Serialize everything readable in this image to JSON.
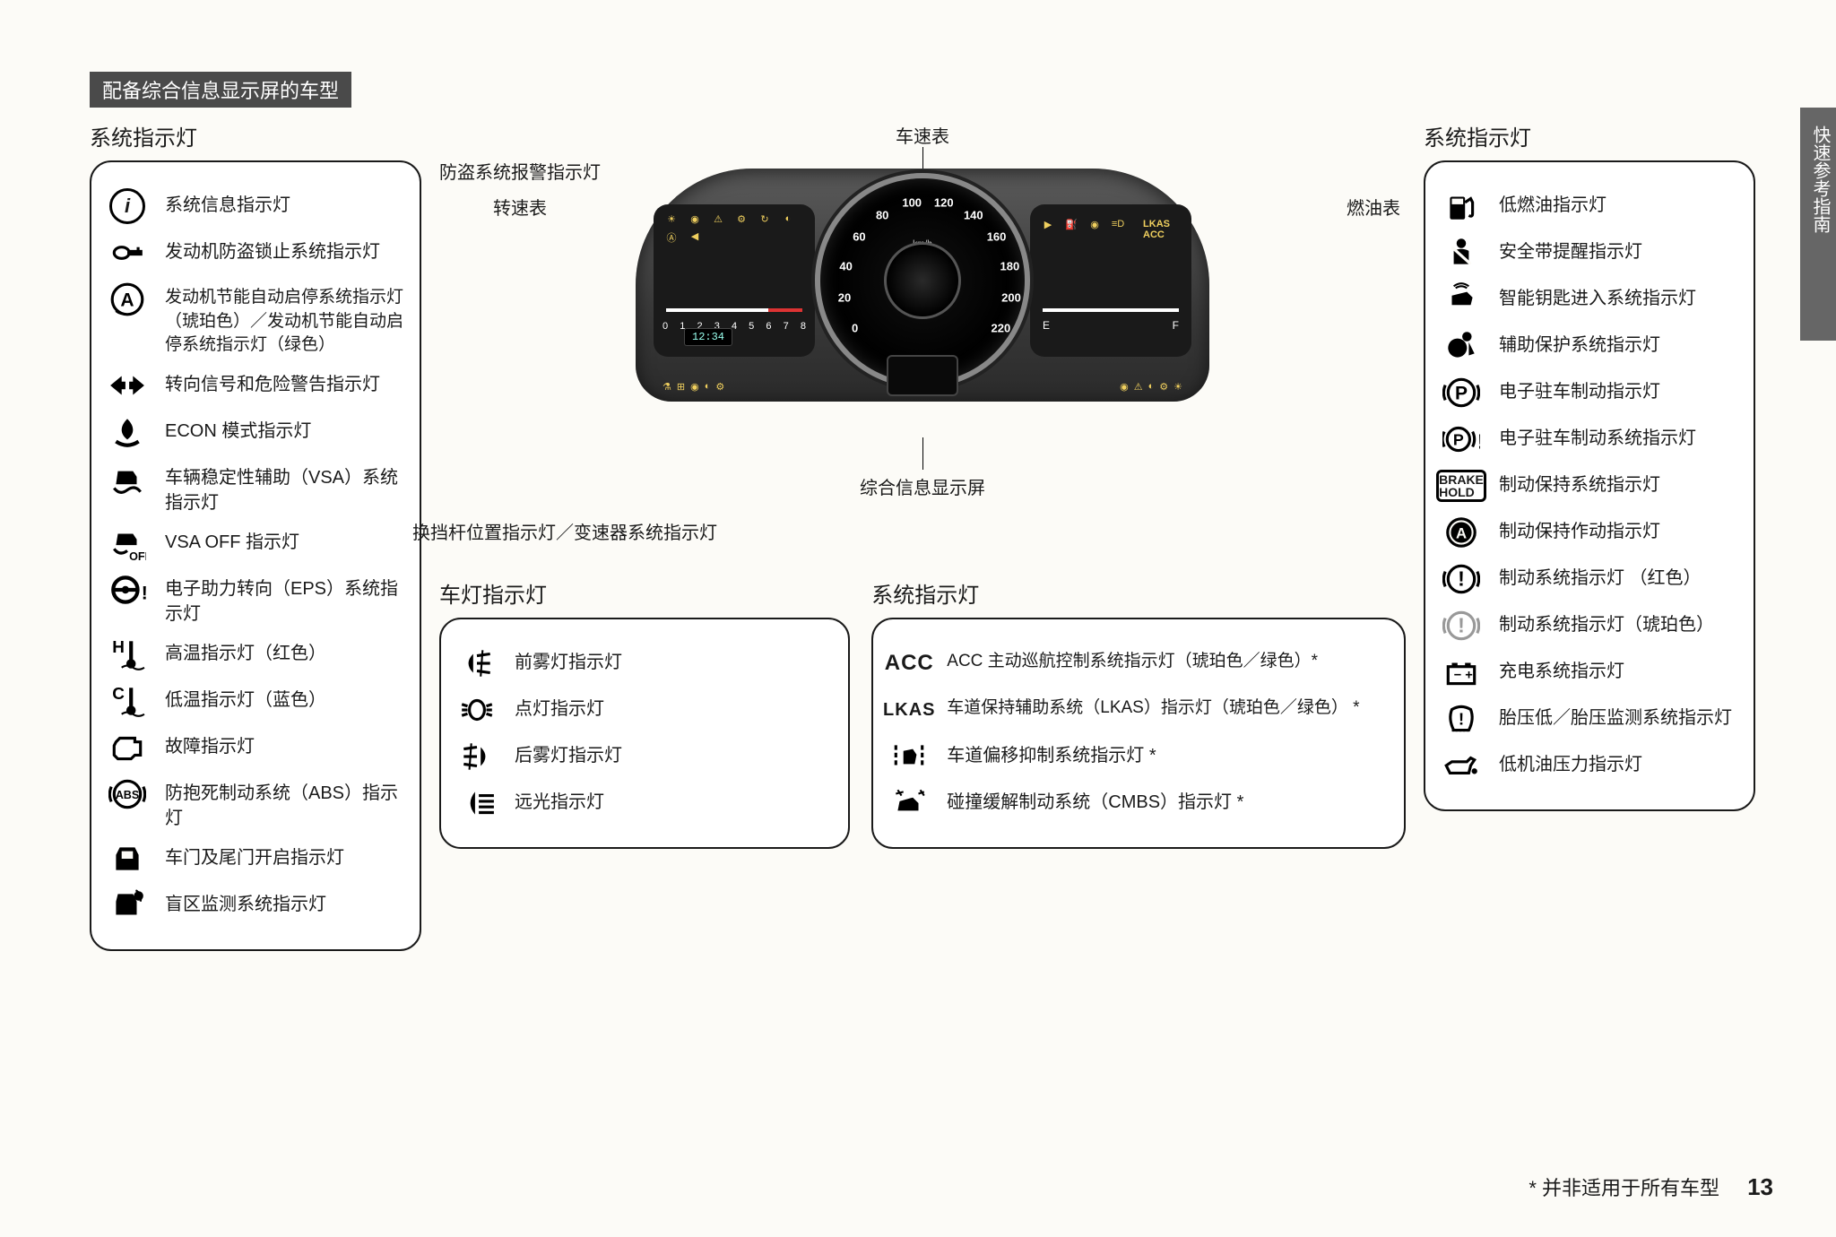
{
  "header": "配备综合信息显示屏的车型",
  "section_title": "系统指示灯",
  "side_tab": "快速参考指南",
  "footnote": "* 并非适用于所有车型",
  "page_number": "13",
  "speedo": {
    "unit": "km/h",
    "values": [
      0,
      20,
      40,
      60,
      80,
      100,
      120,
      140,
      160,
      180,
      200,
      220
    ]
  },
  "tach_values": [
    "0",
    "1",
    "2",
    "3",
    "4",
    "5",
    "6",
    "7",
    "8"
  ],
  "fuel": {
    "e": "E",
    "f": "F"
  },
  "clock": "12:34",
  "right_badges": {
    "lkas": "LKAS",
    "acc": "ACC"
  },
  "callouts": {
    "speedometer": "车速表",
    "security": "防盗系统报警指示灯",
    "tach": "转速表",
    "fuel": "燃油表",
    "info_display": "综合信息显示屏",
    "gear": "换挡杆位置指示灯／变速器系统指示灯"
  },
  "left_panel": [
    {
      "icon": "info-circle",
      "label": "系统信息指示灯"
    },
    {
      "icon": "key",
      "label": "发动机防盗锁止系统指示灯"
    },
    {
      "icon": "a-circle",
      "label": "发动机节能自动启停系统指示灯（琥珀色）／发动机节能自动启停系统指示灯（绿色）"
    },
    {
      "icon": "arrows",
      "label": "转向信号和危险警告指示灯"
    },
    {
      "icon": "econ",
      "label": "ECON 模式指示灯"
    },
    {
      "icon": "vsa",
      "label": "车辆稳定性辅助（VSA）系统指示灯"
    },
    {
      "icon": "vsa-off",
      "label": "VSA OFF 指示灯"
    },
    {
      "icon": "eps",
      "label": "电子助力转向（EPS）系统指示灯"
    },
    {
      "icon": "temp-h",
      "label": "高温指示灯（红色）"
    },
    {
      "icon": "temp-c",
      "label": "低温指示灯（蓝色）"
    },
    {
      "icon": "engine",
      "label": "故障指示灯"
    },
    {
      "icon": "abs",
      "label": "防抱死制动系统（ABS）指示灯"
    },
    {
      "icon": "door",
      "label": "车门及尾门开启指示灯"
    },
    {
      "icon": "blind",
      "label": "盲区监测系统指示灯"
    }
  ],
  "lights_panel": {
    "title": "车灯指示灯",
    "items": [
      {
        "icon": "fog-front",
        "label": "前雾灯指示灯"
      },
      {
        "icon": "lights-on",
        "label": "点灯指示灯"
      },
      {
        "icon": "fog-rear",
        "label": "后雾灯指示灯"
      },
      {
        "icon": "high-beam",
        "label": "远光指示灯"
      }
    ]
  },
  "system_panel": {
    "title": "系统指示灯",
    "items": [
      {
        "icon": "acc-text",
        "label": "ACC 主动巡航控制系统指示灯（琥珀色／绿色）*"
      },
      {
        "icon": "lkas-text",
        "label": "车道保持辅助系统（LKAS）指示灯（琥珀色／绿色） *"
      },
      {
        "icon": "ldw",
        "label": "车道偏移抑制系统指示灯 *"
      },
      {
        "icon": "cmbs",
        "label": "碰撞缓解制动系统（CMBS）指示灯 *"
      }
    ]
  },
  "right_panel": [
    {
      "icon": "fuel",
      "label": "低燃油指示灯"
    },
    {
      "icon": "seatbelt",
      "label": "安全带提醒指示灯"
    },
    {
      "icon": "smartkey",
      "label": "智能钥匙进入系统指示灯"
    },
    {
      "icon": "airbag",
      "label": "辅助保护系统指示灯"
    },
    {
      "icon": "p-circle",
      "label": "电子驻车制动指示灯"
    },
    {
      "icon": "p-circle-ex",
      "label": "电子驻车制动系统指示灯"
    },
    {
      "icon": "brake-hold",
      "label": "制动保持系统指示灯"
    },
    {
      "icon": "a-dark",
      "label": "制动保持作动指示灯"
    },
    {
      "icon": "brake-ex",
      "label": "制动系统指示灯 （红色）"
    },
    {
      "icon": "brake-ex-grey",
      "label": "制动系统指示灯（琥珀色）"
    },
    {
      "icon": "battery",
      "label": "充电系统指示灯"
    },
    {
      "icon": "tpms",
      "label": "胎压低／胎压监测系统指示灯"
    },
    {
      "icon": "oil",
      "label": "低机油压力指示灯"
    }
  ]
}
